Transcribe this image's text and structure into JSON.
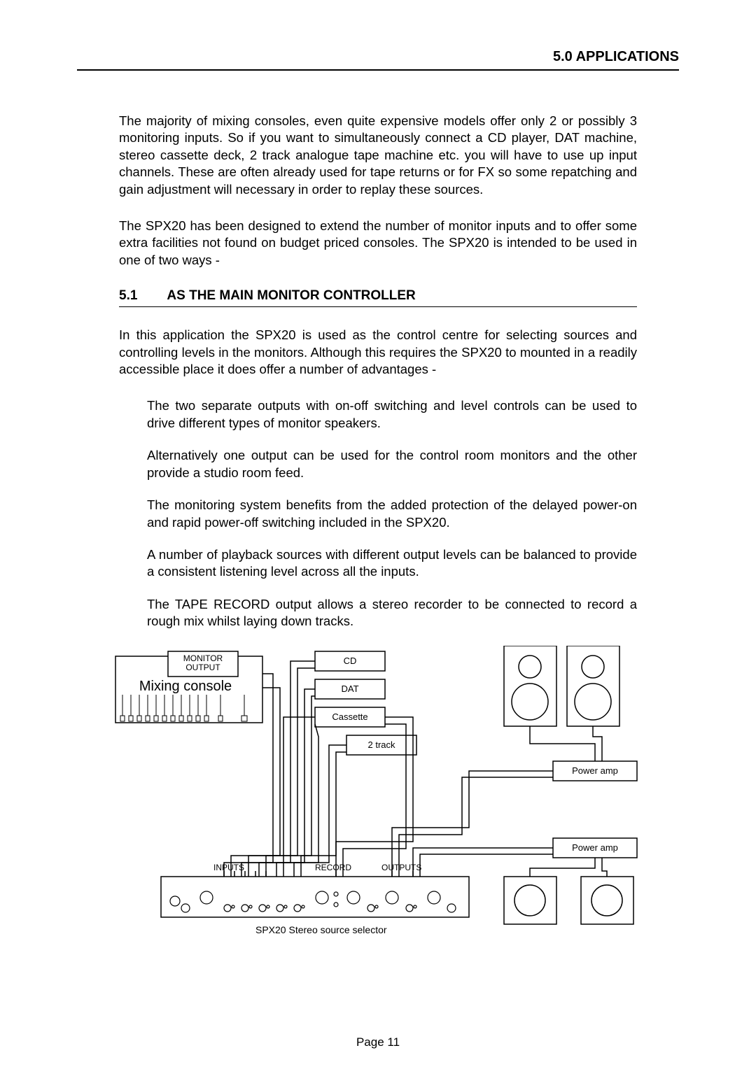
{
  "header": {
    "title": "5.0  APPLICATIONS"
  },
  "para1": "The majority of mixing consoles, even quite expensive models offer only 2 or possibly 3 monitoring inputs. So if you want to simultaneously connect a CD player, DAT machine, stereo cassette deck, 2 track analogue tape machine etc. you will have to use up input channels. These are often already used for tape returns or for FX so some repatching and gain adjustment will necessary in order to replay these sources.",
  "para2": "The SPX20 has been designed to extend the number of monitor inputs and to offer some extra facilities not found on budget priced consoles. The SPX20 is intended to be used in one of two ways -",
  "section": {
    "num": "5.1",
    "title": "AS THE MAIN MONITOR CONTROLLER"
  },
  "para3": "In this application the SPX20 is used as the control centre for selecting sources and controlling levels in the monitors. Although this requires the SPX20 to mounted in a readily accessible place it does offer a number of advantages -",
  "bullet1": "The two separate outputs with on-off switching and level controls can be used to drive different types of monitor speakers.",
  "bullet2": "Alternatively one output can be used for the control room monitors and the other provide a studio room feed.",
  "bullet3": "The monitoring system benefits from the added protection of the delayed power-on and rapid power-off switching included in the SPX20.",
  "bullet4": "A number of playback sources with different output levels can be balanced to provide a consistent listening level across all the inputs.",
  "bullet5": "The TAPE RECORD output allows a stereo recorder to be connected to record a rough mix whilst laying down tracks.",
  "diagram": {
    "monitor_output": "MONITOR\nOUTPUT",
    "mixing_console": "Mixing console",
    "cd": "CD",
    "dat": "DAT",
    "cassette": "Cassette",
    "two_track": "2 track",
    "power_amp1": "Power amp",
    "power_amp2": "Power amp",
    "inputs": "INPUTS",
    "record": "RECORD",
    "outputs": "OUTPUTS",
    "caption": "SPX20 Stereo source selector"
  },
  "footer": {
    "page": "Page 11"
  }
}
